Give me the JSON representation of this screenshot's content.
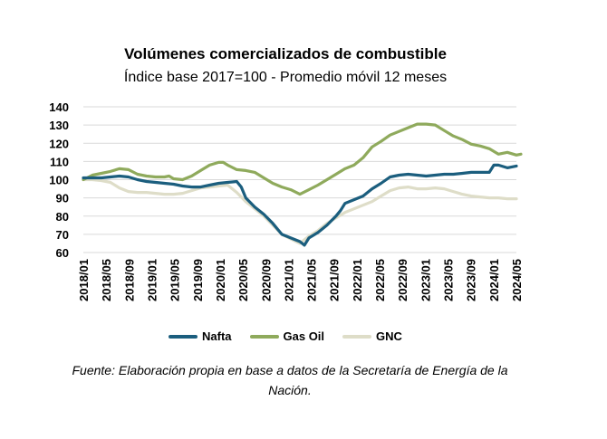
{
  "chart_data": {
    "type": "line",
    "title": "Volúmenes comercializados de combustible",
    "subtitle": "Índice base 2017=100 - Promedio móvil 12 meses",
    "xlabel": "",
    "ylabel": "",
    "ylim": [
      60,
      140
    ],
    "yticks": [
      "60",
      "70",
      "80",
      "90",
      "100",
      "110",
      "120",
      "130",
      "140"
    ],
    "grid": true,
    "legend_position": "bottom",
    "x_tick_labels": [
      "2018/01",
      "2018/05",
      "2018/09",
      "2019/01",
      "2019/05",
      "2019/09",
      "2020/01",
      "2020/05",
      "2020/09",
      "2021/01",
      "2021/05",
      "2021/09",
      "2022/01",
      "2022/05",
      "2022/09",
      "2023/01",
      "2023/05",
      "2023/09",
      "2024/01",
      "2024/05"
    ],
    "series": [
      {
        "name": "Nafta",
        "color": "#1b5e7e",
        "values": [
          [
            0,
            101
          ],
          [
            2,
            101
          ],
          [
            4,
            101
          ],
          [
            6,
            101.5
          ],
          [
            8,
            102
          ],
          [
            10,
            101.5
          ],
          [
            12,
            100
          ],
          [
            14,
            99
          ],
          [
            16,
            98.5
          ],
          [
            18,
            98
          ],
          [
            20,
            97.5
          ],
          [
            22,
            96.5
          ],
          [
            24,
            96
          ],
          [
            26,
            96
          ],
          [
            28,
            97
          ],
          [
            30,
            98
          ],
          [
            32,
            98.5
          ],
          [
            34,
            99
          ],
          [
            35,
            96
          ],
          [
            36,
            90
          ],
          [
            38,
            85
          ],
          [
            40,
            81
          ],
          [
            42,
            76
          ],
          [
            44,
            70
          ],
          [
            46,
            68
          ],
          [
            48,
            66
          ],
          [
            49,
            64
          ],
          [
            50,
            68
          ],
          [
            52,
            71
          ],
          [
            54,
            75
          ],
          [
            56,
            80
          ],
          [
            57,
            83
          ],
          [
            58,
            87
          ],
          [
            60,
            89
          ],
          [
            62,
            91
          ],
          [
            64,
            95
          ],
          [
            66,
            98
          ],
          [
            68,
            101.5
          ],
          [
            70,
            102.5
          ],
          [
            72,
            103
          ],
          [
            74,
            102.5
          ],
          [
            76,
            102
          ],
          [
            78,
            102.5
          ],
          [
            80,
            103
          ],
          [
            82,
            103
          ],
          [
            84,
            103.5
          ],
          [
            86,
            104
          ],
          [
            88,
            104
          ],
          [
            90,
            104
          ],
          [
            91,
            108
          ],
          [
            92,
            108
          ],
          [
            94,
            106.5
          ],
          [
            96,
            107.5
          ]
        ]
      },
      {
        "name": "Gas Oil",
        "color": "#8faa5c",
        "values": [
          [
            0,
            100
          ],
          [
            2,
            102.5
          ],
          [
            4,
            103.5
          ],
          [
            6,
            104.5
          ],
          [
            8,
            106
          ],
          [
            10,
            105.5
          ],
          [
            12,
            103
          ],
          [
            14,
            102
          ],
          [
            16,
            101.5
          ],
          [
            18,
            101.5
          ],
          [
            19,
            102
          ],
          [
            20,
            100.5
          ],
          [
            22,
            100
          ],
          [
            24,
            102
          ],
          [
            26,
            105
          ],
          [
            28,
            108
          ],
          [
            30,
            109.5
          ],
          [
            31,
            109.5
          ],
          [
            32,
            108
          ],
          [
            34,
            105.5
          ],
          [
            36,
            105
          ],
          [
            38,
            104
          ],
          [
            40,
            101
          ],
          [
            42,
            98
          ],
          [
            44,
            96
          ],
          [
            46,
            94.5
          ],
          [
            48,
            92
          ],
          [
            50,
            94.5
          ],
          [
            52,
            97
          ],
          [
            54,
            100
          ],
          [
            56,
            103
          ],
          [
            58,
            106
          ],
          [
            60,
            108
          ],
          [
            62,
            112
          ],
          [
            64,
            118
          ],
          [
            66,
            121
          ],
          [
            68,
            124.5
          ],
          [
            70,
            126.5
          ],
          [
            72,
            128.5
          ],
          [
            74,
            130.5
          ],
          [
            76,
            130.5
          ],
          [
            78,
            130
          ],
          [
            80,
            127
          ],
          [
            82,
            124
          ],
          [
            84,
            122
          ],
          [
            86,
            119.5
          ],
          [
            88,
            118.5
          ],
          [
            90,
            117
          ],
          [
            92,
            114
          ],
          [
            94,
            115
          ],
          [
            96,
            113.5
          ],
          [
            97,
            114
          ]
        ]
      },
      {
        "name": "GNC",
        "color": "#deddc8",
        "values": [
          [
            0,
            100
          ],
          [
            2,
            100
          ],
          [
            4,
            99.5
          ],
          [
            6,
            98.5
          ],
          [
            8,
            95.5
          ],
          [
            10,
            93.5
          ],
          [
            12,
            93
          ],
          [
            14,
            93
          ],
          [
            16,
            92.5
          ],
          [
            18,
            92
          ],
          [
            20,
            92
          ],
          [
            22,
            92.5
          ],
          [
            24,
            94
          ],
          [
            26,
            95.5
          ],
          [
            28,
            96
          ],
          [
            30,
            96.5
          ],
          [
            32,
            97
          ],
          [
            34,
            93
          ],
          [
            36,
            88
          ],
          [
            38,
            84
          ],
          [
            40,
            80
          ],
          [
            42,
            75
          ],
          [
            44,
            70
          ],
          [
            46,
            67.5
          ],
          [
            48,
            65
          ],
          [
            50,
            69
          ],
          [
            52,
            72
          ],
          [
            54,
            76
          ],
          [
            56,
            79
          ],
          [
            58,
            82
          ],
          [
            60,
            84
          ],
          [
            62,
            86
          ],
          [
            64,
            88
          ],
          [
            66,
            91
          ],
          [
            68,
            94
          ],
          [
            70,
            95.5
          ],
          [
            72,
            96
          ],
          [
            74,
            95
          ],
          [
            76,
            95
          ],
          [
            78,
            95.5
          ],
          [
            80,
            95
          ],
          [
            82,
            93.5
          ],
          [
            84,
            92
          ],
          [
            86,
            91
          ],
          [
            88,
            90.5
          ],
          [
            90,
            90
          ],
          [
            92,
            90
          ],
          [
            94,
            89.5
          ],
          [
            96,
            89.5
          ]
        ]
      }
    ]
  },
  "source_note": "Fuente: Elaboración propia en base a datos de la Secretaría de Energía de la Nación."
}
